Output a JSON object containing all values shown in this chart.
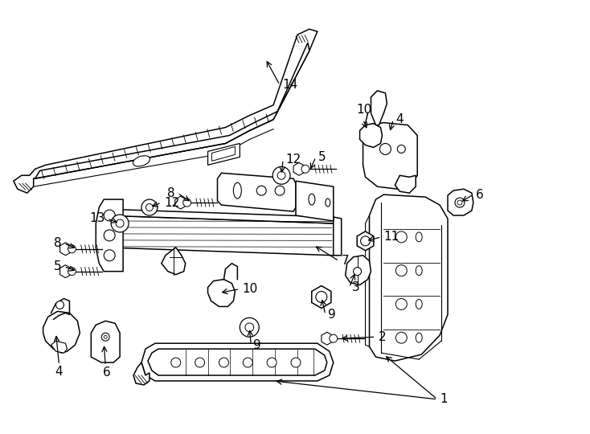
{
  "background_color": "#ffffff",
  "line_color": "#000000",
  "line_width": 1.1,
  "label_fontsize": 11,
  "fig_width": 7.34,
  "fig_height": 5.4
}
